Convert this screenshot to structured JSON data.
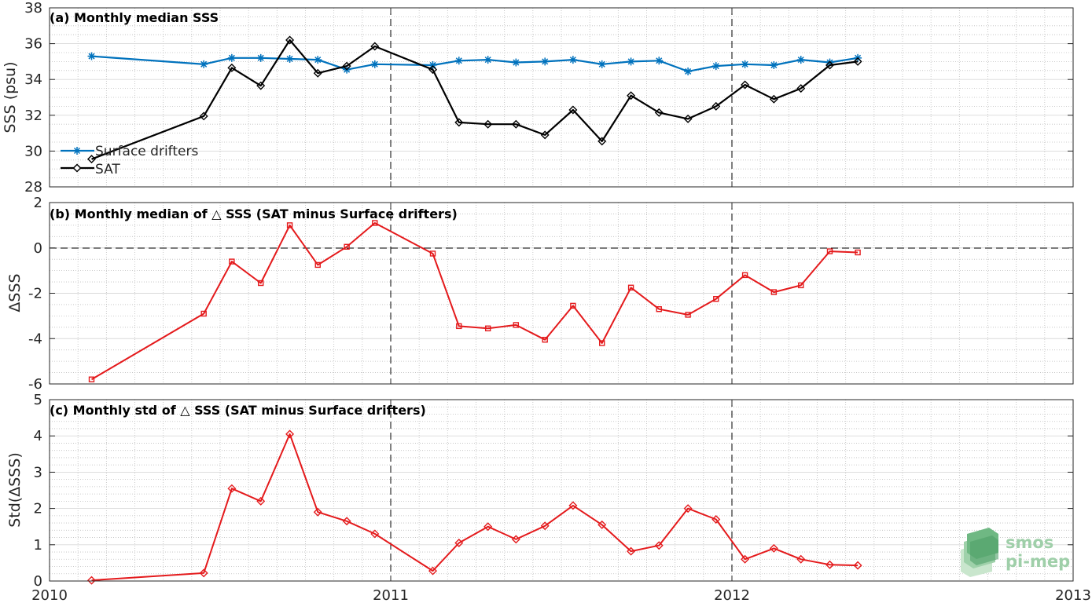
{
  "chart_data": [
    {
      "type": "line",
      "title": "(a) Monthly median SSS",
      "ylabel": "SSS (psu)",
      "xlabel": "",
      "xlim": [
        2010,
        2013
      ],
      "ylim": [
        28,
        38
      ],
      "xticks": [
        "2010",
        "2011",
        "2012",
        "2013"
      ],
      "yticks": [
        "28",
        "30",
        "32",
        "34",
        "36",
        "38"
      ],
      "grid": true,
      "legend_position": "bottom-left",
      "series": [
        {
          "name": "Surface drifters",
          "color": "#0072bd",
          "marker": "asterisk",
          "x": [
            "2010-02-15",
            "2010-06-15",
            "2010-07-15",
            "2010-08-15",
            "2010-09-15",
            "2010-10-15",
            "2010-11-15",
            "2010-12-15",
            "2011-02-15",
            "2011-03-15",
            "2011-04-15",
            "2011-05-15",
            "2011-06-15",
            "2011-07-15",
            "2011-08-15",
            "2011-09-15",
            "2011-10-15",
            "2011-11-15",
            "2011-12-15",
            "2012-01-15",
            "2012-02-15",
            "2012-03-15",
            "2012-04-15",
            "2012-05-15"
          ],
          "values": [
            35.3,
            34.85,
            35.2,
            35.2,
            35.15,
            35.1,
            34.55,
            34.85,
            34.8,
            35.05,
            35.1,
            34.95,
            35.0,
            35.1,
            34.85,
            35.0,
            35.05,
            34.45,
            34.75,
            34.85,
            34.8,
            35.1,
            34.95,
            35.2
          ]
        },
        {
          "name": "SAT",
          "color": "#000000",
          "marker": "diamond",
          "x": [
            "2010-02-15",
            "2010-06-15",
            "2010-07-15",
            "2010-08-15",
            "2010-09-15",
            "2010-10-15",
            "2010-11-15",
            "2010-12-15",
            "2011-02-15",
            "2011-03-15",
            "2011-04-15",
            "2011-05-15",
            "2011-06-15",
            "2011-07-15",
            "2011-08-15",
            "2011-09-15",
            "2011-10-15",
            "2011-11-15",
            "2011-12-15",
            "2012-01-15",
            "2012-02-15",
            "2012-03-15",
            "2012-04-15",
            "2012-05-15"
          ],
          "values": [
            29.55,
            31.95,
            34.65,
            33.65,
            36.2,
            34.35,
            34.75,
            35.85,
            34.55,
            31.6,
            31.5,
            31.5,
            30.9,
            32.3,
            30.55,
            33.1,
            32.15,
            31.8,
            32.5,
            33.7,
            32.9,
            33.5,
            34.8,
            35.0
          ]
        }
      ]
    },
    {
      "type": "line",
      "title": "(b) Monthly median of △ SSS (SAT minus Surface drifters)",
      "ylabel": "ΔSSS",
      "xlabel": "",
      "xlim": [
        2010,
        2013
      ],
      "ylim": [
        -6,
        2
      ],
      "xticks": [
        "2010",
        "2011",
        "2012",
        "2013"
      ],
      "yticks": [
        "-6",
        "-4",
        "-2",
        "0",
        "2"
      ],
      "grid": true,
      "series": [
        {
          "color": "#e41a1c",
          "marker": "square",
          "x": [
            "2010-02-15",
            "2010-06-15",
            "2010-07-15",
            "2010-08-15",
            "2010-09-15",
            "2010-10-15",
            "2010-11-15",
            "2010-12-15",
            "2011-02-15",
            "2011-03-15",
            "2011-04-15",
            "2011-05-15",
            "2011-06-15",
            "2011-07-15",
            "2011-08-15",
            "2011-09-15",
            "2011-10-15",
            "2011-11-15",
            "2011-12-15",
            "2012-01-15",
            "2012-02-15",
            "2012-03-15",
            "2012-04-15",
            "2012-05-15"
          ],
          "values": [
            -5.8,
            -2.9,
            -0.6,
            -1.55,
            1.0,
            -0.75,
            0.05,
            1.1,
            -0.25,
            -3.45,
            -3.55,
            -3.4,
            -4.05,
            -2.55,
            -4.2,
            -1.75,
            -2.7,
            -2.95,
            -2.25,
            -1.2,
            -1.95,
            -1.65,
            -0.15,
            -0.2
          ]
        }
      ]
    },
    {
      "type": "line",
      "title": "(c) Monthly std of △ SSS (SAT minus Surface drifters)",
      "ylabel": "Std(ΔSSS)",
      "xlabel": "",
      "xlim": [
        2010,
        2013
      ],
      "ylim": [
        0,
        5
      ],
      "xticks": [
        "2010",
        "2011",
        "2012",
        "2013"
      ],
      "yticks": [
        "0",
        "1",
        "2",
        "3",
        "4",
        "5"
      ],
      "grid": true,
      "series": [
        {
          "color": "#e41a1c",
          "marker": "diamond",
          "x": [
            "2010-02-15",
            "2010-06-15",
            "2010-07-15",
            "2010-08-15",
            "2010-09-15",
            "2010-10-15",
            "2010-11-15",
            "2010-12-15",
            "2011-02-15",
            "2011-03-15",
            "2011-04-15",
            "2011-05-15",
            "2011-06-15",
            "2011-07-15",
            "2011-08-15",
            "2011-09-15",
            "2011-10-15",
            "2011-11-15",
            "2011-12-15",
            "2012-01-15",
            "2012-02-15",
            "2012-03-15",
            "2012-04-15",
            "2012-05-15"
          ],
          "values": [
            0.02,
            0.22,
            2.55,
            2.2,
            4.05,
            1.9,
            1.65,
            1.3,
            0.28,
            1.05,
            1.5,
            1.15,
            1.52,
            2.08,
            1.55,
            0.82,
            0.98,
            2.0,
            1.7,
            0.6,
            0.9,
            0.6,
            0.45,
            0.43
          ]
        }
      ]
    }
  ],
  "logo": {
    "line1": "smos",
    "line2": "pi-mep"
  }
}
